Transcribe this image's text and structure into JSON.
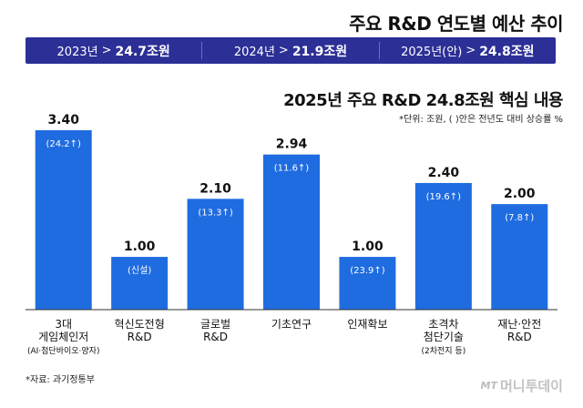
{
  "title": "주요 R&D 연도별 예산 추이",
  "banner": [
    {
      "year": "2023년",
      "arrow": ">",
      "value": "24.7조원"
    },
    {
      "year": "2024년",
      "arrow": ">",
      "value": "21.9조원"
    },
    {
      "year": "2025년(안)",
      "arrow": ">",
      "value": "24.8조원"
    }
  ],
  "subtitle": "2025년 주요 R&D 24.8조원 핵심 내용",
  "unit_note": "*단위: 조원, ( )안은 전년도 대비 상승률 %",
  "source": "*자료: 과기정통부",
  "logo": {
    "mark": "MT",
    "text": "머니투데이"
  },
  "colors": {
    "bar": "#1f6ce0",
    "banner": "#2c2f96",
    "axis": "#333333"
  },
  "chart_data": {
    "type": "bar",
    "title": "2025년 주요 R&D 24.8조원 핵심 내용",
    "categories": [
      [
        "3대",
        "게임체인저",
        "(AI·첨단바이오·양자)"
      ],
      [
        "혁신도전형",
        "R&D"
      ],
      [
        "글로벌",
        "R&D"
      ],
      [
        "기초연구"
      ],
      [
        "인재확보"
      ],
      [
        "초격차",
        "첨단기술",
        "(2차전지 등)"
      ],
      [
        "재난·안전",
        "R&D"
      ]
    ],
    "values": [
      3.4,
      1.0,
      2.1,
      2.94,
      1.0,
      2.4,
      2.0
    ],
    "value_labels": [
      "3.40",
      "1.00",
      "2.10",
      "2.94",
      "1.00",
      "2.40",
      "2.00"
    ],
    "annotations": [
      "(24.2↑)",
      "(신설)",
      "(13.3↑)",
      "(11.6↑)",
      "(23.9↑)",
      "(19.6↑)",
      "(7.8↑)"
    ],
    "unit": "조원",
    "ylim": [
      0,
      3.4
    ],
    "xlabel": "",
    "ylabel": ""
  }
}
